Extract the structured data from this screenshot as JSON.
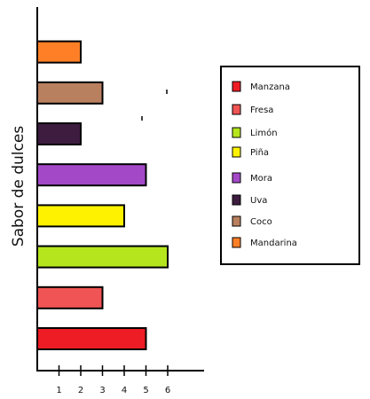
{
  "chart_data": {
    "type": "bar",
    "orientation": "horizontal",
    "ylabel": "Sabor de dulces",
    "categories": [
      "Manzana",
      "Fresa",
      "Limón",
      "Piña",
      "Mora",
      "Uva",
      "Coco",
      "Mandarina"
    ],
    "values": [
      5,
      3,
      6,
      4,
      5,
      2,
      3,
      2
    ],
    "colors": [
      "#ee1c24",
      "#f15454",
      "#b5e51d",
      "#fff200",
      "#a349c8",
      "#3d1c40",
      "#b9805f",
      "#ff7f26"
    ],
    "x_ticks": [
      "1",
      "2",
      "3",
      "4",
      "5",
      "6"
    ],
    "xlim": [
      0,
      6.5
    ],
    "grid": false,
    "legend": {
      "position": "right",
      "entries": [
        "Manzana",
        "Fresa",
        "Limón",
        "Piña",
        "Mora",
        "Uva",
        "Coco",
        "Mandarina"
      ]
    }
  }
}
